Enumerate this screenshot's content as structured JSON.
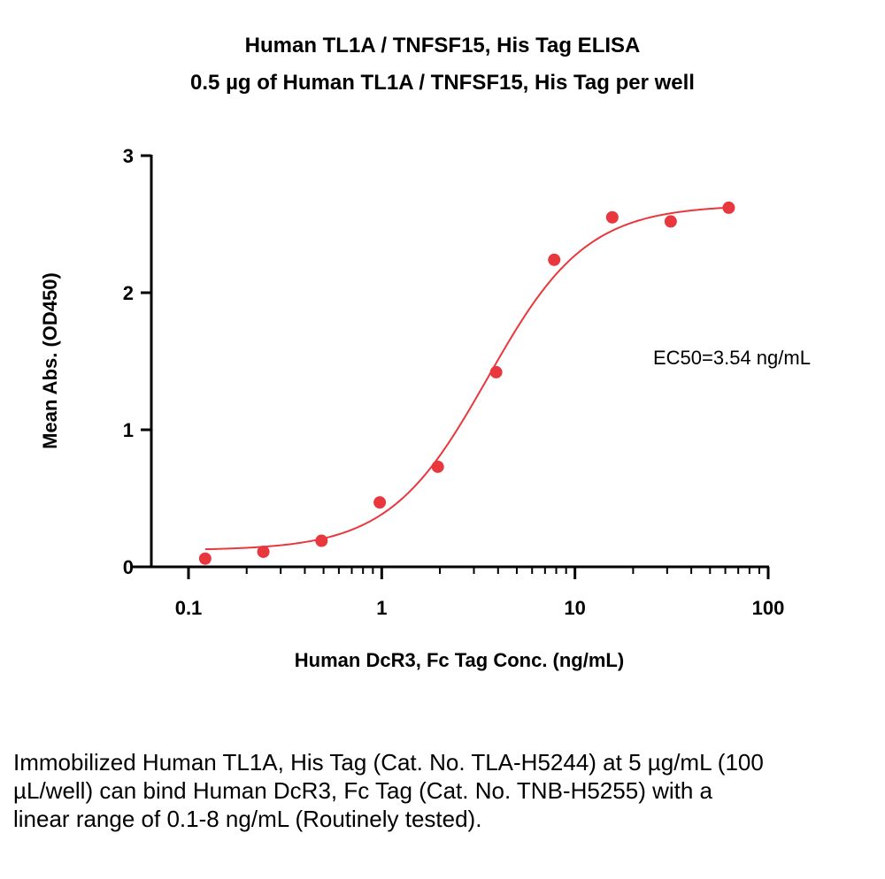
{
  "chart_data": {
    "type": "scatter",
    "title": "Human TL1A / TNFSF15, His Tag  ELISA",
    "subtitle": "0.5 µg of Human TL1A / TNFSF15, His Tag  per well",
    "xlabel": "Human DcR3, Fc Tag Conc. (ng/mL)",
    "ylabel": "Mean Abs. (OD450)",
    "xscale": "log",
    "xlim": [
      0.1,
      100
    ],
    "ylim": [
      0,
      3
    ],
    "x_ticks": [
      {
        "value": 0.1,
        "label": "0.1"
      },
      {
        "value": 1,
        "label": "1"
      },
      {
        "value": 10,
        "label": "10"
      },
      {
        "value": 100,
        "label": "100"
      }
    ],
    "y_ticks": [
      {
        "value": 0,
        "label": "0"
      },
      {
        "value": 1,
        "label": "1"
      },
      {
        "value": 2,
        "label": "2"
      },
      {
        "value": 3,
        "label": "3"
      }
    ],
    "grid": false,
    "color": "#e8383d",
    "series": [
      {
        "x": [
          0.122,
          0.244,
          0.488,
          0.977,
          1.95,
          3.91,
          7.81,
          15.6,
          31.3,
          62.5
        ],
        "y": [
          0.06,
          0.11,
          0.19,
          0.47,
          0.73,
          1.42,
          2.24,
          2.55,
          2.52,
          2.62
        ]
      }
    ],
    "fit": {
      "model": "4PL",
      "bottom": 0.12,
      "top": 2.64,
      "ec50": 3.54,
      "hill": 1.7,
      "x_range": [
        0.122,
        62.5
      ]
    },
    "annotation": "EC50=3.54 ng/mL"
  },
  "caption": "Immobilized Human TL1A, His Tag (Cat. No. TLA-H5244) at 5 µg/mL (100 µL/well) can bind Human DcR3, Fc Tag (Cat. No. TNB-H5255) with a linear range of 0.1-8 ng/mL (Routinely tested)."
}
